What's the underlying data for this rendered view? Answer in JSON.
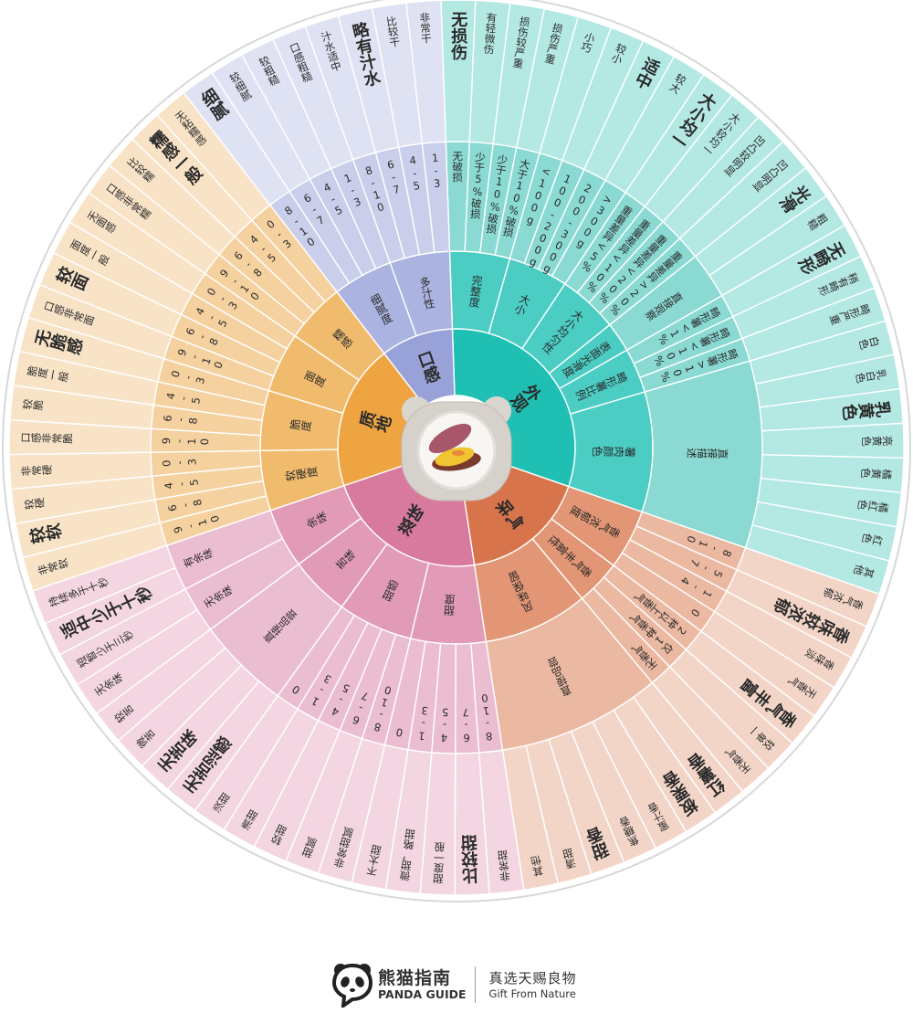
{
  "wheel": {
    "categories": [
      {
        "name": "外观",
        "colors": [
          "#1fbfb4",
          "#4ccdc4",
          "#8ad9d3",
          "#b4e8e3"
        ],
        "aspects": [
          {
            "name": "完整度",
            "levels": [
              "无破损",
              "少于5%破损",
              "少于10%破损",
              "大于10%破损"
            ],
            "descriptors": [
              {
                "text": "无损伤",
                "highlighted": true
              },
              {
                "text": "有轻微伤"
              },
              {
                "text": "损伤较严重"
              },
              {
                "text": "损伤严重"
              }
            ]
          },
          {
            "name": "大小",
            "levels": [
              "<100g",
              "100-200g",
              "200-300g",
              ">300g"
            ],
            "descriptors": [
              {
                "text": "小巧"
              },
              {
                "text": "较小"
              },
              {
                "text": "适中",
                "highlighted": true
              },
              {
                "text": "较大"
              }
            ]
          },
          {
            "name": "大小均匀性",
            "levels": [
              "重量差异<5%",
              "重量差异<10%",
              "重量差异<20%",
              "重量差异>20%"
            ],
            "descriptors": [
              {
                "text": "大小均一",
                "highlighted": true
              },
              {
                "text": "大小较均一"
              },
              {
                "text": "凹凸较明显"
              },
              {
                "text": "凹凸明显"
              }
            ]
          },
          {
            "name": "表面光滑度",
            "levels": [
              "直接观察"
            ],
            "descriptors": [
              {
                "text": "光滑",
                "highlighted": true
              },
              {
                "text": "粗糙"
              }
            ]
          },
          {
            "name": "畸形薯比例",
            "levels": [
              "畸形薯<1%",
              "畸形薯<10%",
              "畸形薯>10%"
            ],
            "descriptors": [
              {
                "text": "无畸形",
                "highlighted": true
              },
              {
                "text": "稍有畸形"
              },
              {
                "text": "畸形严重"
              }
            ]
          },
          {
            "name": "薯肉颜色",
            "levels": [
              "直接描述"
            ],
            "descriptors": [
              {
                "text": "白色"
              },
              {
                "text": "乳白色"
              },
              {
                "text": "乳黄色",
                "highlighted": true
              },
              {
                "text": "亮黄色"
              },
              {
                "text": "橘黄色"
              },
              {
                "text": "橘红色"
              },
              {
                "text": "红色"
              },
              {
                "text": "其他"
              }
            ]
          }
        ]
      },
      {
        "name": "气味",
        "colors": [
          "#d8744b",
          "#e29675",
          "#ebb9a2",
          "#f3d5c8"
        ],
        "aspects": [
          {
            "name": "香气浓郁度",
            "levels": [
              "8-10",
              "5-7",
              "1-4",
              "0"
            ],
            "descriptors": [
              {
                "text": "香气浓郁"
              },
              {
                "text": "香味较浓郁",
                "highlighted": true
              },
              {
                "text": "香味淡"
              },
              {
                "text": "无香气"
              }
            ]
          },
          {
            "name": "香气丰富性",
            "levels": [
              "2种以上香气",
              "仅1种香气",
              "无香气"
            ],
            "descriptors": [
              {
                "text": "香气丰富",
                "highlighted": true
              },
              {
                "text": "较单一"
              },
              {
                "text": "无香气"
              }
            ]
          },
          {
            "name": "风味保留",
            "levels": [
              "直接品尝"
            ],
            "descriptors": [
              {
                "text": "红薯香",
                "highlighted": true
              },
              {
                "text": "板栗香",
                "highlighted": true
              },
              {
                "text": "蜜汁香"
              },
              {
                "text": "焦糖香"
              },
              {
                "text": "甜香",
                "highlighted": true
              },
              {
                "text": "清甜"
              },
              {
                "text": "其他"
              }
            ]
          }
        ]
      },
      {
        "name": "滋味",
        "colors": [
          "#d87a9e",
          "#e29bb6",
          "#ebbdd0",
          "#f3d6e2"
        ],
        "aspects": [
          {
            "name": "甜度",
            "levels": [
              "8-10",
              "6-7",
              "4-5",
              "1-3",
              "0"
            ],
            "descriptors": [
              {
                "text": "非常甜"
              },
              {
                "text": "比较甜",
                "highlighted": true
              },
              {
                "text": "甜度一般"
              },
              {
                "text": "微甜，略甜"
              },
              {
                "text": "不太甜"
              }
            ]
          },
          {
            "name": "甜感",
            "levels": [
              "8-10",
              "6-7",
              "4-5",
              "1-3",
              "0"
            ],
            "descriptors": [
              {
                "text": "非常甜腻"
              },
              {
                "text": "甜腻"
              },
              {
                "text": "较甜"
              },
              {
                "text": "清甜"
              },
              {
                "text": "淡甜"
              }
            ]
          },
          {
            "name": "苦味",
            "levels": [
              "直接品尝"
            ],
            "descriptors": [
              {
                "text": "无苦涩感",
                "highlighted": true
              },
              {
                "text": "无苦味",
                "highlighted": true
              },
              {
                "text": "微苦"
              },
              {
                "text": "较苦"
              }
            ]
          },
          {
            "name": "余味",
            "levels": [
              "无余味",
              "有余味"
            ],
            "descriptors": [
              {
                "text": "无余味"
              },
              {
                "text": "短暂少于三秒"
              },
              {
                "text": "适中少于十秒",
                "highlighted": true
              },
              {
                "text": "持续多于十秒"
              }
            ]
          }
        ]
      },
      {
        "name": "质地",
        "colors": [
          "#eda441",
          "#f1bb6d",
          "#f5d1a0",
          "#f8e3c7"
        ],
        "aspects": [
          {
            "name": "软硬度",
            "levels": [
              "9-10",
              "6-8",
              "4-5",
              "0-3"
            ],
            "descriptors": [
              {
                "text": "非常软"
              },
              {
                "text": "较软",
                "highlighted": true
              },
              {
                "text": "较硬"
              },
              {
                "text": "非常硬"
              }
            ]
          },
          {
            "name": "脆度",
            "levels": [
              "9-10",
              "6-8",
              "4-5",
              "0-3"
            ],
            "descriptors": [
              {
                "text": "口感非常脆"
              },
              {
                "text": "较脆"
              },
              {
                "text": "脆度一般"
              },
              {
                "text": "无脆感",
                "highlighted": true
              }
            ]
          },
          {
            "name": "面度",
            "levels": [
              "9-10",
              "6-8",
              "4-5",
              "0-3"
            ],
            "descriptors": [
              {
                "text": "口感非常面"
              },
              {
                "text": "较面",
                "highlighted": true
              },
              {
                "text": "面度一般"
              },
              {
                "text": "无面感"
              }
            ]
          },
          {
            "name": "糯感",
            "levels": [
              "9-10",
              "6-8",
              "4-5",
              "0-3"
            ],
            "descriptors": [
              {
                "text": "口感非常糯"
              },
              {
                "text": "比较糯"
              },
              {
                "text": "糯感一般",
                "highlighted": true
              },
              {
                "text": "无粘糯感"
              }
            ]
          }
        ]
      },
      {
        "name": "口感",
        "colors": [
          "#98a2d8",
          "#abb4e0",
          "#c9cfea",
          "#dfe2f2"
        ],
        "aspects": [
          {
            "name": "细腻度",
            "levels": [
              "8-10",
              "6-7",
              "4-5",
              "1-3"
            ],
            "descriptors": [
              {
                "text": "细腻",
                "highlighted": true
              },
              {
                "text": "较细腻"
              },
              {
                "text": "较粗糙"
              },
              {
                "text": "口感粗糙"
              }
            ]
          },
          {
            "name": "多汁性",
            "levels": [
              "8-10",
              "6-7",
              "4-5",
              "1-3"
            ],
            "descriptors": [
              {
                "text": "汁水适中"
              },
              {
                "text": "略有汁水",
                "highlighted": true
              },
              {
                "text": "比较干"
              },
              {
                "text": "非常干"
              }
            ]
          }
        ]
      }
    ]
  },
  "footer": {
    "brand_cn": "熊猫指南",
    "brand_en": "PANDA GUIDE",
    "slogan_cn": "真选天赐良物",
    "slogan_en": "Gift From Nature"
  }
}
